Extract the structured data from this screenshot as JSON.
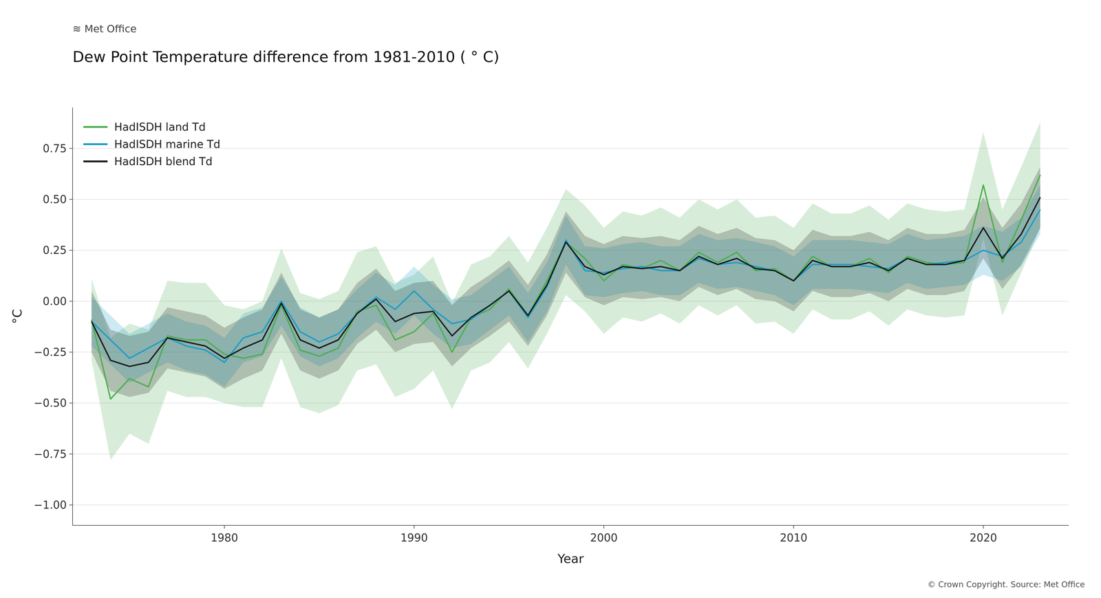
{
  "chart_data": {
    "type": "line",
    "title": "Dew Point Temperature difference from 1981-2010 ( ° C)",
    "x_label": "Year",
    "y_label": "°C",
    "annotations": [
      "≋ Met Office",
      "© Crown Copyright. Source: Met Office"
    ],
    "x": [
      1973,
      1974,
      1975,
      1976,
      1977,
      1978,
      1979,
      1980,
      1981,
      1982,
      1983,
      1984,
      1985,
      1986,
      1987,
      1988,
      1989,
      1990,
      1991,
      1992,
      1993,
      1994,
      1995,
      1996,
      1997,
      1998,
      1999,
      2000,
      2001,
      2002,
      2003,
      2004,
      2005,
      2006,
      2007,
      2008,
      2009,
      2010,
      2011,
      2012,
      2013,
      2014,
      2015,
      2016,
      2017,
      2018,
      2019,
      2020,
      2021,
      2022,
      2023
    ],
    "series": [
      {
        "name": "HadISDH land Td",
        "color": "#4caf50",
        "values": [
          -0.09,
          -0.48,
          -0.38,
          -0.42,
          -0.17,
          -0.19,
          -0.19,
          -0.26,
          -0.28,
          -0.26,
          -0.02,
          -0.24,
          -0.27,
          -0.23,
          -0.05,
          -0.02,
          -0.19,
          -0.15,
          -0.06,
          -0.25,
          -0.08,
          -0.04,
          0.06,
          -0.07,
          0.1,
          0.29,
          0.21,
          0.1,
          0.18,
          0.16,
          0.2,
          0.15,
          0.24,
          0.19,
          0.24,
          0.15,
          0.16,
          0.1,
          0.22,
          0.17,
          0.17,
          0.21,
          0.14,
          0.22,
          0.19,
          0.18,
          0.19,
          0.57,
          0.19,
          0.4,
          0.62
        ],
        "upper": [
          0.11,
          -0.18,
          -0.11,
          -0.14,
          0.1,
          0.09,
          0.09,
          -0.02,
          -0.04,
          0.0,
          0.26,
          0.04,
          0.01,
          0.05,
          0.24,
          0.27,
          0.09,
          0.13,
          0.22,
          -0.01,
          0.18,
          0.22,
          0.32,
          0.19,
          0.36,
          0.55,
          0.47,
          0.36,
          0.44,
          0.42,
          0.46,
          0.41,
          0.5,
          0.45,
          0.5,
          0.41,
          0.42,
          0.36,
          0.48,
          0.43,
          0.43,
          0.47,
          0.4,
          0.48,
          0.45,
          0.44,
          0.45,
          0.83,
          0.45,
          0.66,
          0.88
        ],
        "lower": [
          -0.29,
          -0.78,
          -0.65,
          -0.7,
          -0.44,
          -0.47,
          -0.47,
          -0.5,
          -0.52,
          -0.52,
          -0.28,
          -0.52,
          -0.55,
          -0.51,
          -0.34,
          -0.31,
          -0.47,
          -0.43,
          -0.34,
          -0.53,
          -0.34,
          -0.3,
          -0.2,
          -0.33,
          -0.16,
          0.03,
          -0.05,
          -0.16,
          -0.08,
          -0.1,
          -0.06,
          -0.11,
          -0.02,
          -0.07,
          -0.02,
          -0.11,
          -0.1,
          -0.16,
          -0.04,
          -0.09,
          -0.09,
          -0.05,
          -0.12,
          -0.04,
          -0.07,
          -0.08,
          -0.07,
          0.31,
          -0.07,
          0.14,
          0.36
        ]
      },
      {
        "name": "HadISDH marine Td",
        "color": "#1b9dc9",
        "values": [
          -0.1,
          -0.19,
          -0.28,
          -0.23,
          -0.18,
          -0.22,
          -0.24,
          -0.3,
          -0.18,
          -0.15,
          0.0,
          -0.15,
          -0.2,
          -0.16,
          -0.06,
          0.02,
          -0.04,
          0.05,
          -0.04,
          -0.11,
          -0.09,
          -0.02,
          0.05,
          -0.08,
          0.07,
          0.3,
          0.15,
          0.14,
          0.16,
          0.17,
          0.15,
          0.15,
          0.21,
          0.18,
          0.19,
          0.17,
          0.15,
          0.1,
          0.18,
          0.18,
          0.18,
          0.17,
          0.16,
          0.21,
          0.18,
          0.19,
          0.2,
          0.25,
          0.22,
          0.29,
          0.45
        ],
        "upper": [
          0.02,
          -0.07,
          -0.16,
          -0.11,
          -0.06,
          -0.1,
          -0.12,
          -0.18,
          -0.06,
          -0.03,
          0.12,
          -0.03,
          -0.08,
          -0.04,
          0.06,
          0.14,
          0.08,
          0.17,
          0.08,
          0.01,
          0.03,
          0.1,
          0.17,
          0.04,
          0.19,
          0.42,
          0.27,
          0.26,
          0.28,
          0.29,
          0.27,
          0.27,
          0.33,
          0.3,
          0.31,
          0.29,
          0.27,
          0.22,
          0.3,
          0.3,
          0.3,
          0.29,
          0.28,
          0.33,
          0.3,
          0.31,
          0.32,
          0.37,
          0.34,
          0.41,
          0.57
        ],
        "lower": [
          -0.22,
          -0.31,
          -0.4,
          -0.35,
          -0.3,
          -0.34,
          -0.36,
          -0.42,
          -0.3,
          -0.27,
          -0.12,
          -0.27,
          -0.32,
          -0.28,
          -0.18,
          -0.1,
          -0.16,
          -0.07,
          -0.16,
          -0.23,
          -0.21,
          -0.14,
          -0.07,
          -0.2,
          -0.05,
          0.18,
          0.03,
          0.02,
          0.04,
          0.05,
          0.03,
          0.03,
          0.09,
          0.06,
          0.07,
          0.05,
          0.03,
          -0.02,
          0.06,
          0.06,
          0.06,
          0.05,
          0.04,
          0.09,
          0.06,
          0.07,
          0.08,
          0.13,
          0.1,
          0.17,
          0.33
        ]
      },
      {
        "name": "HadISDH blend Td",
        "color": "#1a1a1a",
        "values": [
          -0.1,
          -0.29,
          -0.32,
          -0.3,
          -0.18,
          -0.2,
          -0.22,
          -0.28,
          -0.23,
          -0.19,
          -0.01,
          -0.19,
          -0.23,
          -0.19,
          -0.06,
          0.01,
          -0.1,
          -0.06,
          -0.05,
          -0.17,
          -0.08,
          -0.02,
          0.05,
          -0.07,
          0.08,
          0.29,
          0.17,
          0.13,
          0.17,
          0.16,
          0.17,
          0.15,
          0.22,
          0.18,
          0.21,
          0.16,
          0.15,
          0.1,
          0.2,
          0.17,
          0.17,
          0.19,
          0.15,
          0.21,
          0.18,
          0.18,
          0.2,
          0.36,
          0.21,
          0.33,
          0.51
        ],
        "upper": [
          0.05,
          -0.14,
          -0.17,
          -0.15,
          -0.03,
          -0.05,
          -0.07,
          -0.13,
          -0.08,
          -0.04,
          0.14,
          -0.04,
          -0.08,
          -0.04,
          0.09,
          0.16,
          0.05,
          0.09,
          0.1,
          -0.02,
          0.07,
          0.13,
          0.2,
          0.08,
          0.23,
          0.44,
          0.32,
          0.28,
          0.32,
          0.31,
          0.32,
          0.3,
          0.37,
          0.33,
          0.36,
          0.31,
          0.3,
          0.25,
          0.35,
          0.32,
          0.32,
          0.34,
          0.3,
          0.36,
          0.33,
          0.33,
          0.35,
          0.51,
          0.36,
          0.48,
          0.66
        ],
        "lower": [
          -0.25,
          -0.44,
          -0.47,
          -0.45,
          -0.33,
          -0.35,
          -0.37,
          -0.43,
          -0.38,
          -0.34,
          -0.16,
          -0.34,
          -0.38,
          -0.34,
          -0.21,
          -0.14,
          -0.25,
          -0.21,
          -0.2,
          -0.32,
          -0.23,
          -0.17,
          -0.1,
          -0.22,
          -0.07,
          0.14,
          0.02,
          -0.02,
          0.02,
          0.01,
          0.02,
          0.0,
          0.07,
          0.03,
          0.06,
          0.01,
          0.0,
          -0.05,
          0.05,
          0.02,
          0.02,
          0.04,
          0.0,
          0.06,
          0.03,
          0.03,
          0.05,
          0.21,
          0.06,
          0.18,
          0.36
        ]
      }
    ],
    "xlim": [
      1972.0,
      2024.5
    ],
    "xticks": [
      1980,
      1990,
      2000,
      2010,
      2020
    ],
    "ylim": [
      -1.1,
      0.95
    ],
    "yticks": [
      {
        "value": -1.0,
        "label": "−1.00"
      },
      {
        "value": -0.75,
        "label": "−0.75"
      },
      {
        "value": -0.5,
        "label": "−0.50"
      },
      {
        "value": -0.25,
        "label": "−0.25"
      },
      {
        "value": 0.0,
        "label": "0.00"
      },
      0.25,
      {
        "value": 0.5,
        "label": "0.50"
      },
      0.75
    ],
    "grid": true,
    "legend": "upper left"
  }
}
